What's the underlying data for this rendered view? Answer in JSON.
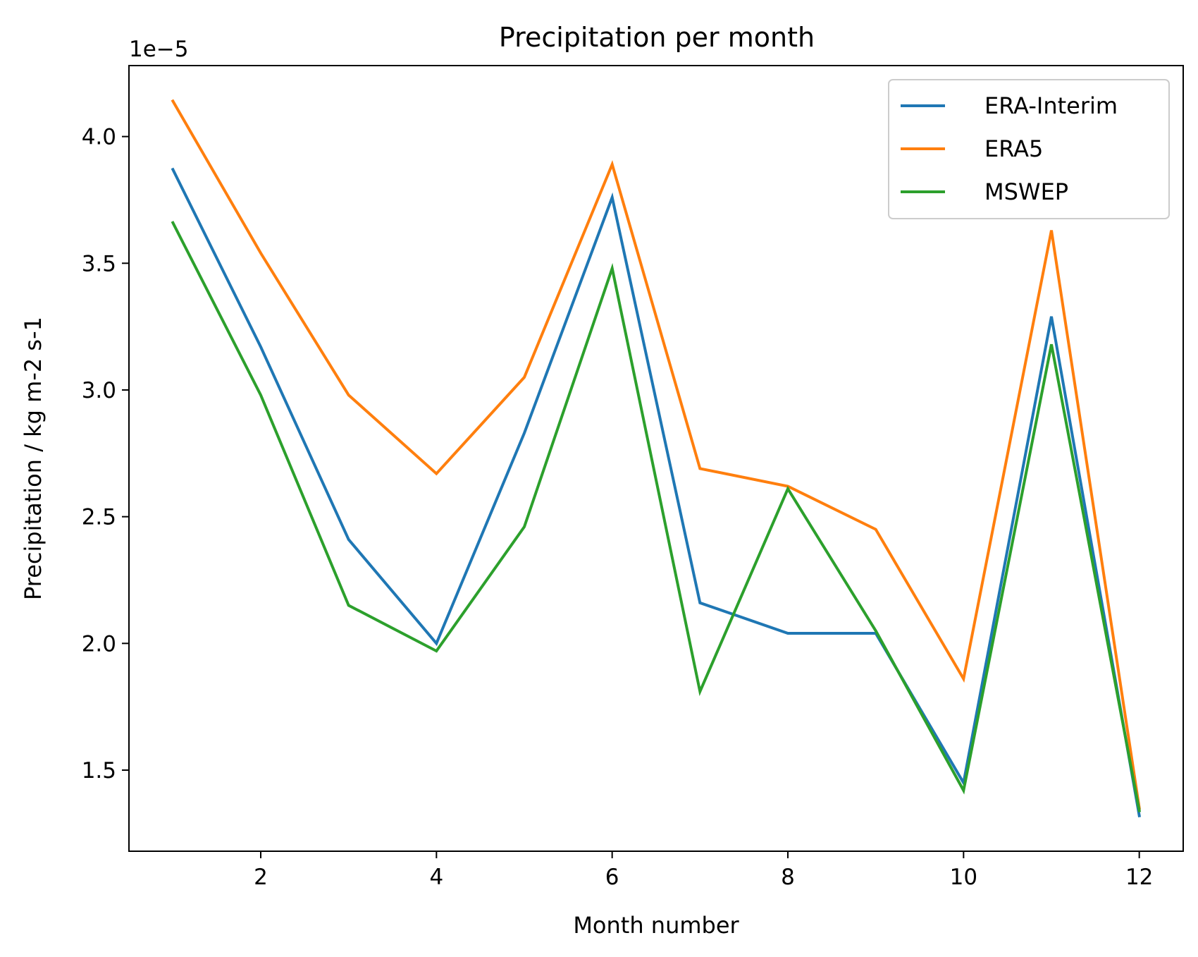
{
  "chart_data": {
    "type": "line",
    "title": "Precipitation per month",
    "xlabel": "Month number",
    "ylabel": "Precipitation / kg m-2 s-1",
    "offset_label": "1e−5",
    "x": [
      1,
      2,
      3,
      4,
      5,
      6,
      7,
      8,
      9,
      10,
      11,
      12
    ],
    "xlim": [
      0.5,
      12.5
    ],
    "ylim": [
      1.18,
      4.28
    ],
    "xticks": [
      2,
      4,
      6,
      8,
      10,
      12
    ],
    "xtick_labels": [
      "2",
      "4",
      "6",
      "8",
      "10",
      "12"
    ],
    "yticks": [
      1.5,
      2.0,
      2.5,
      3.0,
      3.5,
      4.0
    ],
    "ytick_labels": [
      "1.5",
      "2.0",
      "2.5",
      "3.0",
      "3.5",
      "4.0"
    ],
    "grid": false,
    "legend_position": "top-right",
    "series": [
      {
        "name": "ERA-Interim",
        "color": "#1f77b4",
        "values": [
          3.87,
          3.17,
          2.41,
          2.0,
          2.83,
          3.76,
          2.16,
          2.04,
          2.04,
          1.45,
          3.29,
          1.32
        ]
      },
      {
        "name": "ERA5",
        "color": "#ff7f0e",
        "values": [
          4.14,
          3.54,
          2.98,
          2.67,
          3.05,
          3.89,
          2.69,
          2.62,
          2.45,
          1.86,
          3.63,
          1.35
        ]
      },
      {
        "name": "MSWEP",
        "color": "#2ca02c",
        "values": [
          3.66,
          2.98,
          2.15,
          1.97,
          2.46,
          3.48,
          1.81,
          2.61,
          2.05,
          1.42,
          3.18,
          1.34
        ]
      }
    ]
  }
}
